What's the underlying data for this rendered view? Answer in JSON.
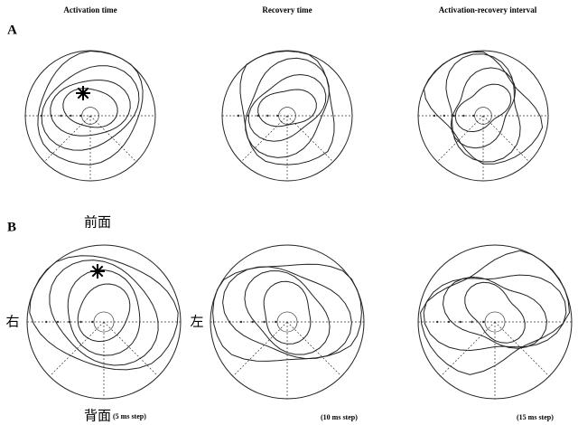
{
  "figure": {
    "column_titles": [
      "Activation time",
      "Recovery time",
      "Activation-recovery interval"
    ],
    "row_labels": [
      "A",
      "B"
    ],
    "orientation": {
      "front": "前面",
      "right": "右",
      "left": "左",
      "back": "背面"
    },
    "steps": [
      "(5 ms step)",
      "(10 ms step)",
      "(15 ms step)"
    ]
  }
}
